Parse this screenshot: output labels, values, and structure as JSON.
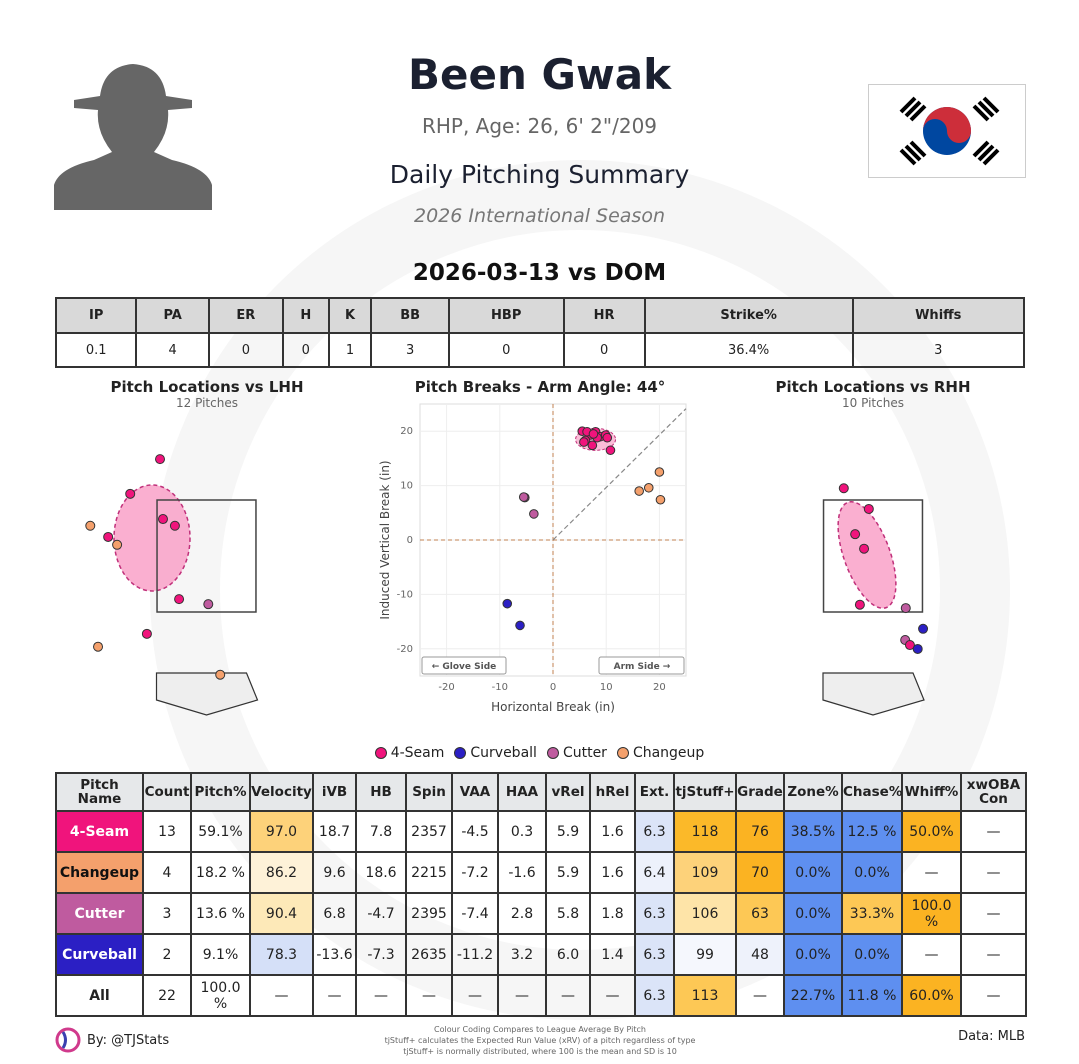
{
  "header": {
    "name": "Been Gwak",
    "bio": "RHP, Age: 26, 6' 2\"/209",
    "report": "Daily Pitching Summary",
    "season": "2026 International Season",
    "game": "2026-03-13 vs DOM",
    "flag": "south-korea-flag"
  },
  "stats": {
    "headers": [
      "IP",
      "PA",
      "ER",
      "H",
      "K",
      "BB",
      "HBP",
      "HR",
      "Strike%",
      "Whiffs"
    ],
    "values": [
      "0.1",
      "4",
      "0",
      "0",
      "1",
      "3",
      "0",
      "0",
      "36.4%",
      "3"
    ]
  },
  "pitch_colors": {
    "4-Seam": "#f0147c",
    "Changeup": "#f4a06c",
    "Cutter": "#bf5b9f",
    "Curveball": "#2b1fc4"
  },
  "loc_lhh": {
    "title": "Pitch Locations vs LHH",
    "subtitle": "12 Pitches",
    "points": [
      {
        "t": "4-Seam",
        "x": -0.78,
        "z": 4.23
      },
      {
        "t": "4-Seam",
        "x": -1.28,
        "z": 3.61
      },
      {
        "t": "4-Seam",
        "x": -0.73,
        "z": 3.16
      },
      {
        "t": "4-Seam",
        "x": -0.53,
        "z": 3.04
      },
      {
        "t": "4-Seam",
        "x": -1.65,
        "z": 2.84
      },
      {
        "t": "Changeup",
        "x": -1.95,
        "z": 3.04
      },
      {
        "t": "Changeup",
        "x": -1.5,
        "z": 2.7
      },
      {
        "t": "4-Seam",
        "x": -0.46,
        "z": 1.73
      },
      {
        "t": "Cutter",
        "x": 0.03,
        "z": 1.64
      },
      {
        "t": "4-Seam",
        "x": -1.0,
        "z": 1.11
      },
      {
        "t": "Changeup",
        "x": -1.82,
        "z": 0.88
      },
      {
        "t": "Changeup",
        "x": 0.23,
        "z": 0.38
      }
    ]
  },
  "loc_rhh": {
    "title": "Pitch Locations vs RHH",
    "subtitle": "10 Pitches",
    "points": [
      {
        "t": "4-Seam",
        "x": -0.49,
        "z": 3.71
      },
      {
        "t": "4-Seam",
        "x": -0.07,
        "z": 3.34
      },
      {
        "t": "4-Seam",
        "x": -0.3,
        "z": 2.89
      },
      {
        "t": "4-Seam",
        "x": -0.15,
        "z": 2.63
      },
      {
        "t": "4-Seam",
        "x": -0.22,
        "z": 1.63
      },
      {
        "t": "Cutter",
        "x": 0.55,
        "z": 1.57
      },
      {
        "t": "Curveball",
        "x": 0.84,
        "z": 1.2
      },
      {
        "t": "Cutter",
        "x": 0.54,
        "z": 1.0
      },
      {
        "t": "4-Seam",
        "x": 0.62,
        "z": 0.91
      },
      {
        "t": "Curveball",
        "x": 0.75,
        "z": 0.84
      }
    ]
  },
  "chart_data": {
    "type": "scatter",
    "title": "Pitch Breaks - Arm Angle: 44°",
    "xlabel": "Horizontal Break (in)",
    "ylabel": "Induced Vertical Break (in)",
    "xlim": [
      -25,
      25
    ],
    "ylim": [
      -25,
      25
    ],
    "xticks": [
      -20,
      -10,
      0,
      10,
      20
    ],
    "yticks": [
      -20,
      -10,
      0,
      10,
      20
    ],
    "grid": true,
    "arm_angle_deg": 44,
    "glove_label": "← Glove Side",
    "arm_label": "Arm Side →",
    "points": [
      {
        "t": "4-Seam",
        "x": 5.5,
        "y": 20.0
      },
      {
        "t": "4-Seam",
        "x": 7.0,
        "y": 19.3
      },
      {
        "t": "4-Seam",
        "x": 8.0,
        "y": 19.9
      },
      {
        "t": "4-Seam",
        "x": 8.9,
        "y": 19.0
      },
      {
        "t": "4-Seam",
        "x": 9.9,
        "y": 19.3
      },
      {
        "t": "4-Seam",
        "x": 6.1,
        "y": 18.3
      },
      {
        "t": "4-Seam",
        "x": 7.4,
        "y": 17.4
      },
      {
        "t": "4-Seam",
        "x": 8.3,
        "y": 18.8
      },
      {
        "t": "4-Seam",
        "x": 10.8,
        "y": 16.5
      },
      {
        "t": "4-Seam",
        "x": 5.8,
        "y": 18.0
      },
      {
        "t": "4-Seam",
        "x": 10.2,
        "y": 18.8
      },
      {
        "t": "4-Seam",
        "x": 6.4,
        "y": 19.9
      },
      {
        "t": "4-Seam",
        "x": 7.6,
        "y": 19.5
      },
      {
        "t": "Changeup",
        "x": 20.0,
        "y": 12.5
      },
      {
        "t": "Changeup",
        "x": 18.0,
        "y": 9.6
      },
      {
        "t": "Changeup",
        "x": 16.2,
        "y": 9.0
      },
      {
        "t": "Changeup",
        "x": 20.2,
        "y": 7.4
      },
      {
        "t": "Cutter",
        "x": -5.3,
        "y": 7.8
      },
      {
        "t": "Cutter",
        "x": -5.5,
        "y": 7.9
      },
      {
        "t": "Cutter",
        "x": -3.6,
        "y": 4.8
      },
      {
        "t": "Curveball",
        "x": -8.6,
        "y": -11.7
      },
      {
        "t": "Curveball",
        "x": -6.2,
        "y": -15.7
      }
    ]
  },
  "legend": [
    "4-Seam",
    "Curveball",
    "Cutter",
    "Changeup"
  ],
  "pitch_table": {
    "headers": [
      "Pitch Name",
      "Count",
      "Pitch%",
      "Velocity",
      "iVB",
      "HB",
      "Spin",
      "VAA",
      "HAA",
      "vRel",
      "hRel",
      "Ext.",
      "tjStuff+",
      "Grade",
      "Zone%",
      "Chase%",
      "Whiff%",
      "xwOBA Con"
    ],
    "rows": [
      {
        "values": [
          "4-Seam",
          "13",
          "59.1%",
          "97.0",
          "18.7",
          "7.8",
          "2357",
          "-4.5",
          "0.3",
          "5.9",
          "1.6",
          "6.3",
          "118",
          "76",
          "38.5%",
          "12.5 %",
          "50.0%",
          "—"
        ],
        "colors": {
          "3": "#fdd27a",
          "11": "#dbe4f8",
          "12": "#fbb929",
          "13": "#fbb322",
          "14": "#5e8ff0",
          "15": "#5e8ff0",
          "16": "#fbb322"
        }
      },
      {
        "values": [
          "Changeup",
          "4",
          "18.2 %",
          "86.2",
          "9.6",
          "18.6",
          "2215",
          "-7.2",
          "-1.6",
          "5.9",
          "1.6",
          "6.4",
          "109",
          "70",
          "0.0%",
          "0.0%",
          "—",
          "—"
        ],
        "colors": {
          "3": "#fef2d8",
          "11": "#edf1fb",
          "12": "#fdd27a",
          "13": "#fbb322",
          "14": "#5e8ff0",
          "15": "#5e8ff0"
        }
      },
      {
        "values": [
          "Cutter",
          "3",
          "13.6 %",
          "90.4",
          "6.8",
          "-4.7",
          "2395",
          "-7.4",
          "2.8",
          "5.8",
          "1.8",
          "6.3",
          "106",
          "63",
          "0.0%",
          "33.3%",
          "100.0 %",
          "—"
        ],
        "colors": {
          "3": "#fde9b8",
          "11": "#dbe4f8",
          "12": "#fee4a8",
          "13": "#fdc855",
          "14": "#5e8ff0",
          "15": "#fdc855",
          "16": "#fbb322"
        }
      },
      {
        "values": [
          "Curveball",
          "2",
          "9.1%",
          "78.3",
          "-13.6",
          "-7.3",
          "2635",
          "-11.2",
          "3.2",
          "6.0",
          "1.4",
          "6.3",
          "99",
          "48",
          "0.0%",
          "0.0%",
          "—",
          "—"
        ],
        "colors": {
          "3": "#d5e0f8",
          "11": "#dbe4f8",
          "12": "#f5f7fd",
          "13": "#eef2fb",
          "14": "#5e8ff0",
          "15": "#5e8ff0"
        }
      },
      {
        "values": [
          "All",
          "22",
          "100.0 %",
          "—",
          "—",
          "—",
          "—",
          "—",
          "—",
          "—",
          "—",
          "6.3",
          "113",
          "—",
          "22.7%",
          "11.8 %",
          "60.0%",
          "—"
        ],
        "colors": {
          "11": "#dbe4f8",
          "12": "#fdc855",
          "14": "#5e8ff0",
          "15": "#5e8ff0",
          "16": "#fbb322"
        }
      }
    ]
  },
  "footer": {
    "by": "By: @TJStats",
    "data": "Data: MLB",
    "notes": [
      "Colour Coding Compares to League Average By Pitch",
      "tjStuff+ calculates the Expected Run Value (xRV) of a pitch regardless of type",
      "tjStuff+ is normally distributed, where 100 is the mean and SD is 10"
    ]
  }
}
